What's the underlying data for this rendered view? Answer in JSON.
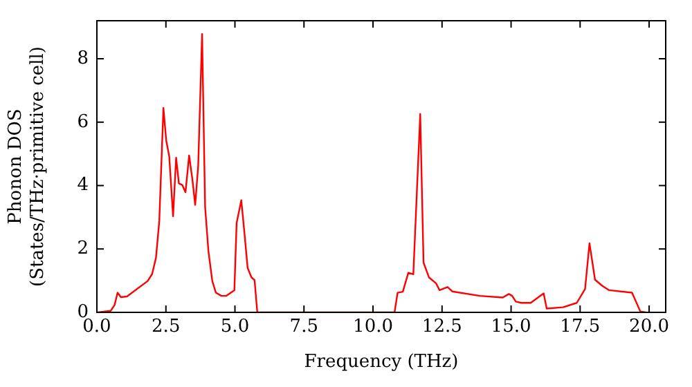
{
  "chart_data": {
    "type": "line",
    "xlabel": "Frequency (THz)",
    "ylabel": "Phonon DOS\n(States/THz·primitive cell)",
    "xlim": [
      0,
      20.6
    ],
    "ylim": [
      0,
      9.2
    ],
    "xticks": [
      {
        "value": 0,
        "label": "0.0"
      },
      {
        "value": 2.5,
        "label": "2.5"
      },
      {
        "value": 5,
        "label": "5.0"
      },
      {
        "value": 7.5,
        "label": "7.5"
      },
      {
        "value": 10,
        "label": "10.0"
      },
      {
        "value": 12.5,
        "label": "12.5"
      },
      {
        "value": 15,
        "label": "15.0"
      },
      {
        "value": 17.5,
        "label": "17.5"
      },
      {
        "value": 20,
        "label": "20.0"
      }
    ],
    "yticks": [
      0,
      2,
      4,
      6,
      8
    ],
    "grid": false,
    "legend": false,
    "marker": "none",
    "line_style": "solid",
    "series": [
      {
        "color": "#ff0000",
        "x": [
          0.03,
          0.5,
          0.64,
          0.75,
          0.87,
          1.09,
          1.84,
          2.0,
          2.14,
          2.26,
          2.41,
          2.51,
          2.62,
          2.76,
          2.87,
          2.97,
          3.09,
          3.21,
          3.34,
          3.46,
          3.56,
          3.67,
          3.81,
          3.92,
          4.04,
          4.18,
          4.31,
          4.51,
          4.68,
          4.98,
          5.06,
          5.23,
          5.35,
          5.46,
          5.6,
          5.71,
          5.81,
          10.78,
          10.89,
          11.08,
          11.28,
          11.46,
          11.71,
          11.83,
          12.03,
          12.28,
          12.41,
          12.7,
          12.87,
          13.87,
          14.7,
          14.92,
          15.04,
          15.17,
          15.37,
          15.71,
          16.18,
          16.29,
          16.88,
          17.38,
          17.68,
          17.84,
          18.04,
          18.3,
          18.55,
          19.38,
          19.68,
          19.88
        ],
        "values": [
          0,
          0.05,
          0.23,
          0.62,
          0.48,
          0.5,
          0.99,
          1.21,
          1.72,
          2.88,
          6.45,
          5.43,
          4.92,
          3.03,
          4.88,
          4.07,
          4.02,
          3.79,
          4.95,
          4.19,
          3.39,
          4.63,
          8.78,
          3.32,
          1.93,
          0.99,
          0.62,
          0.52,
          0.52,
          0.7,
          2.81,
          3.54,
          2.45,
          1.4,
          1.1,
          1.02,
          0,
          0,
          0.62,
          0.65,
          1.25,
          1.2,
          6.26,
          1.57,
          1.1,
          0.92,
          0.7,
          0.8,
          0.66,
          0.52,
          0.47,
          0.58,
          0.52,
          0.34,
          0.3,
          0.3,
          0.6,
          0.12,
          0.16,
          0.3,
          0.74,
          2.18,
          1.03,
          0.84,
          0.7,
          0.62,
          0.03,
          0
        ]
      }
    ]
  }
}
